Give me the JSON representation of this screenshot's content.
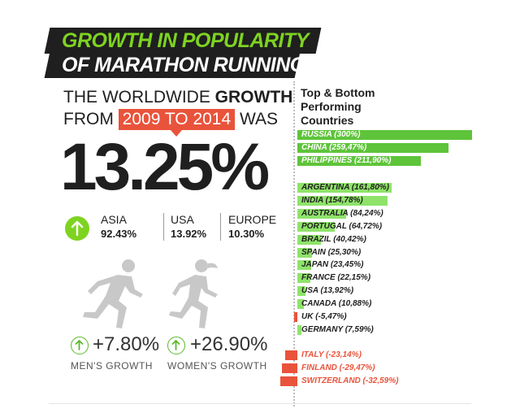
{
  "title": {
    "line1": "GROWTH IN POPULARITY",
    "line2": "OF MARATHON RUNNING"
  },
  "lead": {
    "line1_a": "THE WORLDWIDE ",
    "line1_b": "GROWTH",
    "line2_a": "FROM ",
    "years": "2009 TO 2014",
    "line2_b": " WAS"
  },
  "headline_value": "13.25%",
  "regions": [
    {
      "name": "ASIA",
      "value": "92.43%"
    },
    {
      "name": "USA",
      "value": "13.92%"
    },
    {
      "name": "EUROPE",
      "value": "10.30%"
    }
  ],
  "gender": [
    {
      "value": "+7.80%",
      "label": "MEN'S GROWTH"
    },
    {
      "value": "+26.90%",
      "label": "WOMEN'S GROWTH"
    }
  ],
  "colors": {
    "green_dark": "#5ec43a",
    "green_light": "#8fe36a",
    "red": "#e9533b",
    "text_dark": "#1f1f1f",
    "title_green": "#7ed321"
  },
  "chart_data": {
    "type": "bar",
    "title": "Top & Bottom Performing Countries",
    "unit": "%",
    "groups": [
      {
        "name": "top",
        "items": [
          {
            "country": "RUSSIA",
            "value": 300,
            "label": "RUSSIA (300%)"
          },
          {
            "country": "CHINA",
            "value": 259.47,
            "label": "CHINA (259,47%)"
          },
          {
            "country": "PHILIPPINES",
            "value": 211.9,
            "label": "PHILIPPINES (211,90%)"
          }
        ]
      },
      {
        "name": "middle",
        "items": [
          {
            "country": "ARGENTINA",
            "value": 161.8,
            "label": "ARGENTINA (161,80%)"
          },
          {
            "country": "INDIA",
            "value": 154.78,
            "label": "INDIA (154,78%)"
          },
          {
            "country": "AUSTRALIA",
            "value": 84.24,
            "label": "AUSTRALIA (84,24%)"
          },
          {
            "country": "PORTUGAL",
            "value": 64.72,
            "label": "PORTUGAL (64,72%)"
          },
          {
            "country": "BRAZIL",
            "value": 40.42,
            "label": "BRAZIL (40,42%)"
          },
          {
            "country": "SPAIN",
            "value": 25.3,
            "label": "SPAIN (25,30%)"
          },
          {
            "country": "JAPAN",
            "value": 23.45,
            "label": "JAPAN (23,45%)"
          },
          {
            "country": "FRANCE",
            "value": 22.15,
            "label": "FRANCE (22,15%)"
          },
          {
            "country": "USA",
            "value": 13.92,
            "label": "USA (13,92%)"
          },
          {
            "country": "CANADA",
            "value": 10.88,
            "label": "CANADA (10,88%)"
          },
          {
            "country": "UK",
            "value": -5.47,
            "label": "UK (-5,47%)"
          },
          {
            "country": "GERMANY",
            "value": 7.59,
            "label": "GERMANY (7,59%)"
          }
        ]
      },
      {
        "name": "bottom",
        "items": [
          {
            "country": "ITALY",
            "value": -23.14,
            "label": "ITALY (-23,14%)"
          },
          {
            "country": "FINLAND",
            "value": -29.47,
            "label": "FINLAND (-29,47%)"
          },
          {
            "country": "SWITZERLAND",
            "value": -32.59,
            "label": "SWITZERLAND (-32,59%)"
          }
        ]
      }
    ]
  }
}
